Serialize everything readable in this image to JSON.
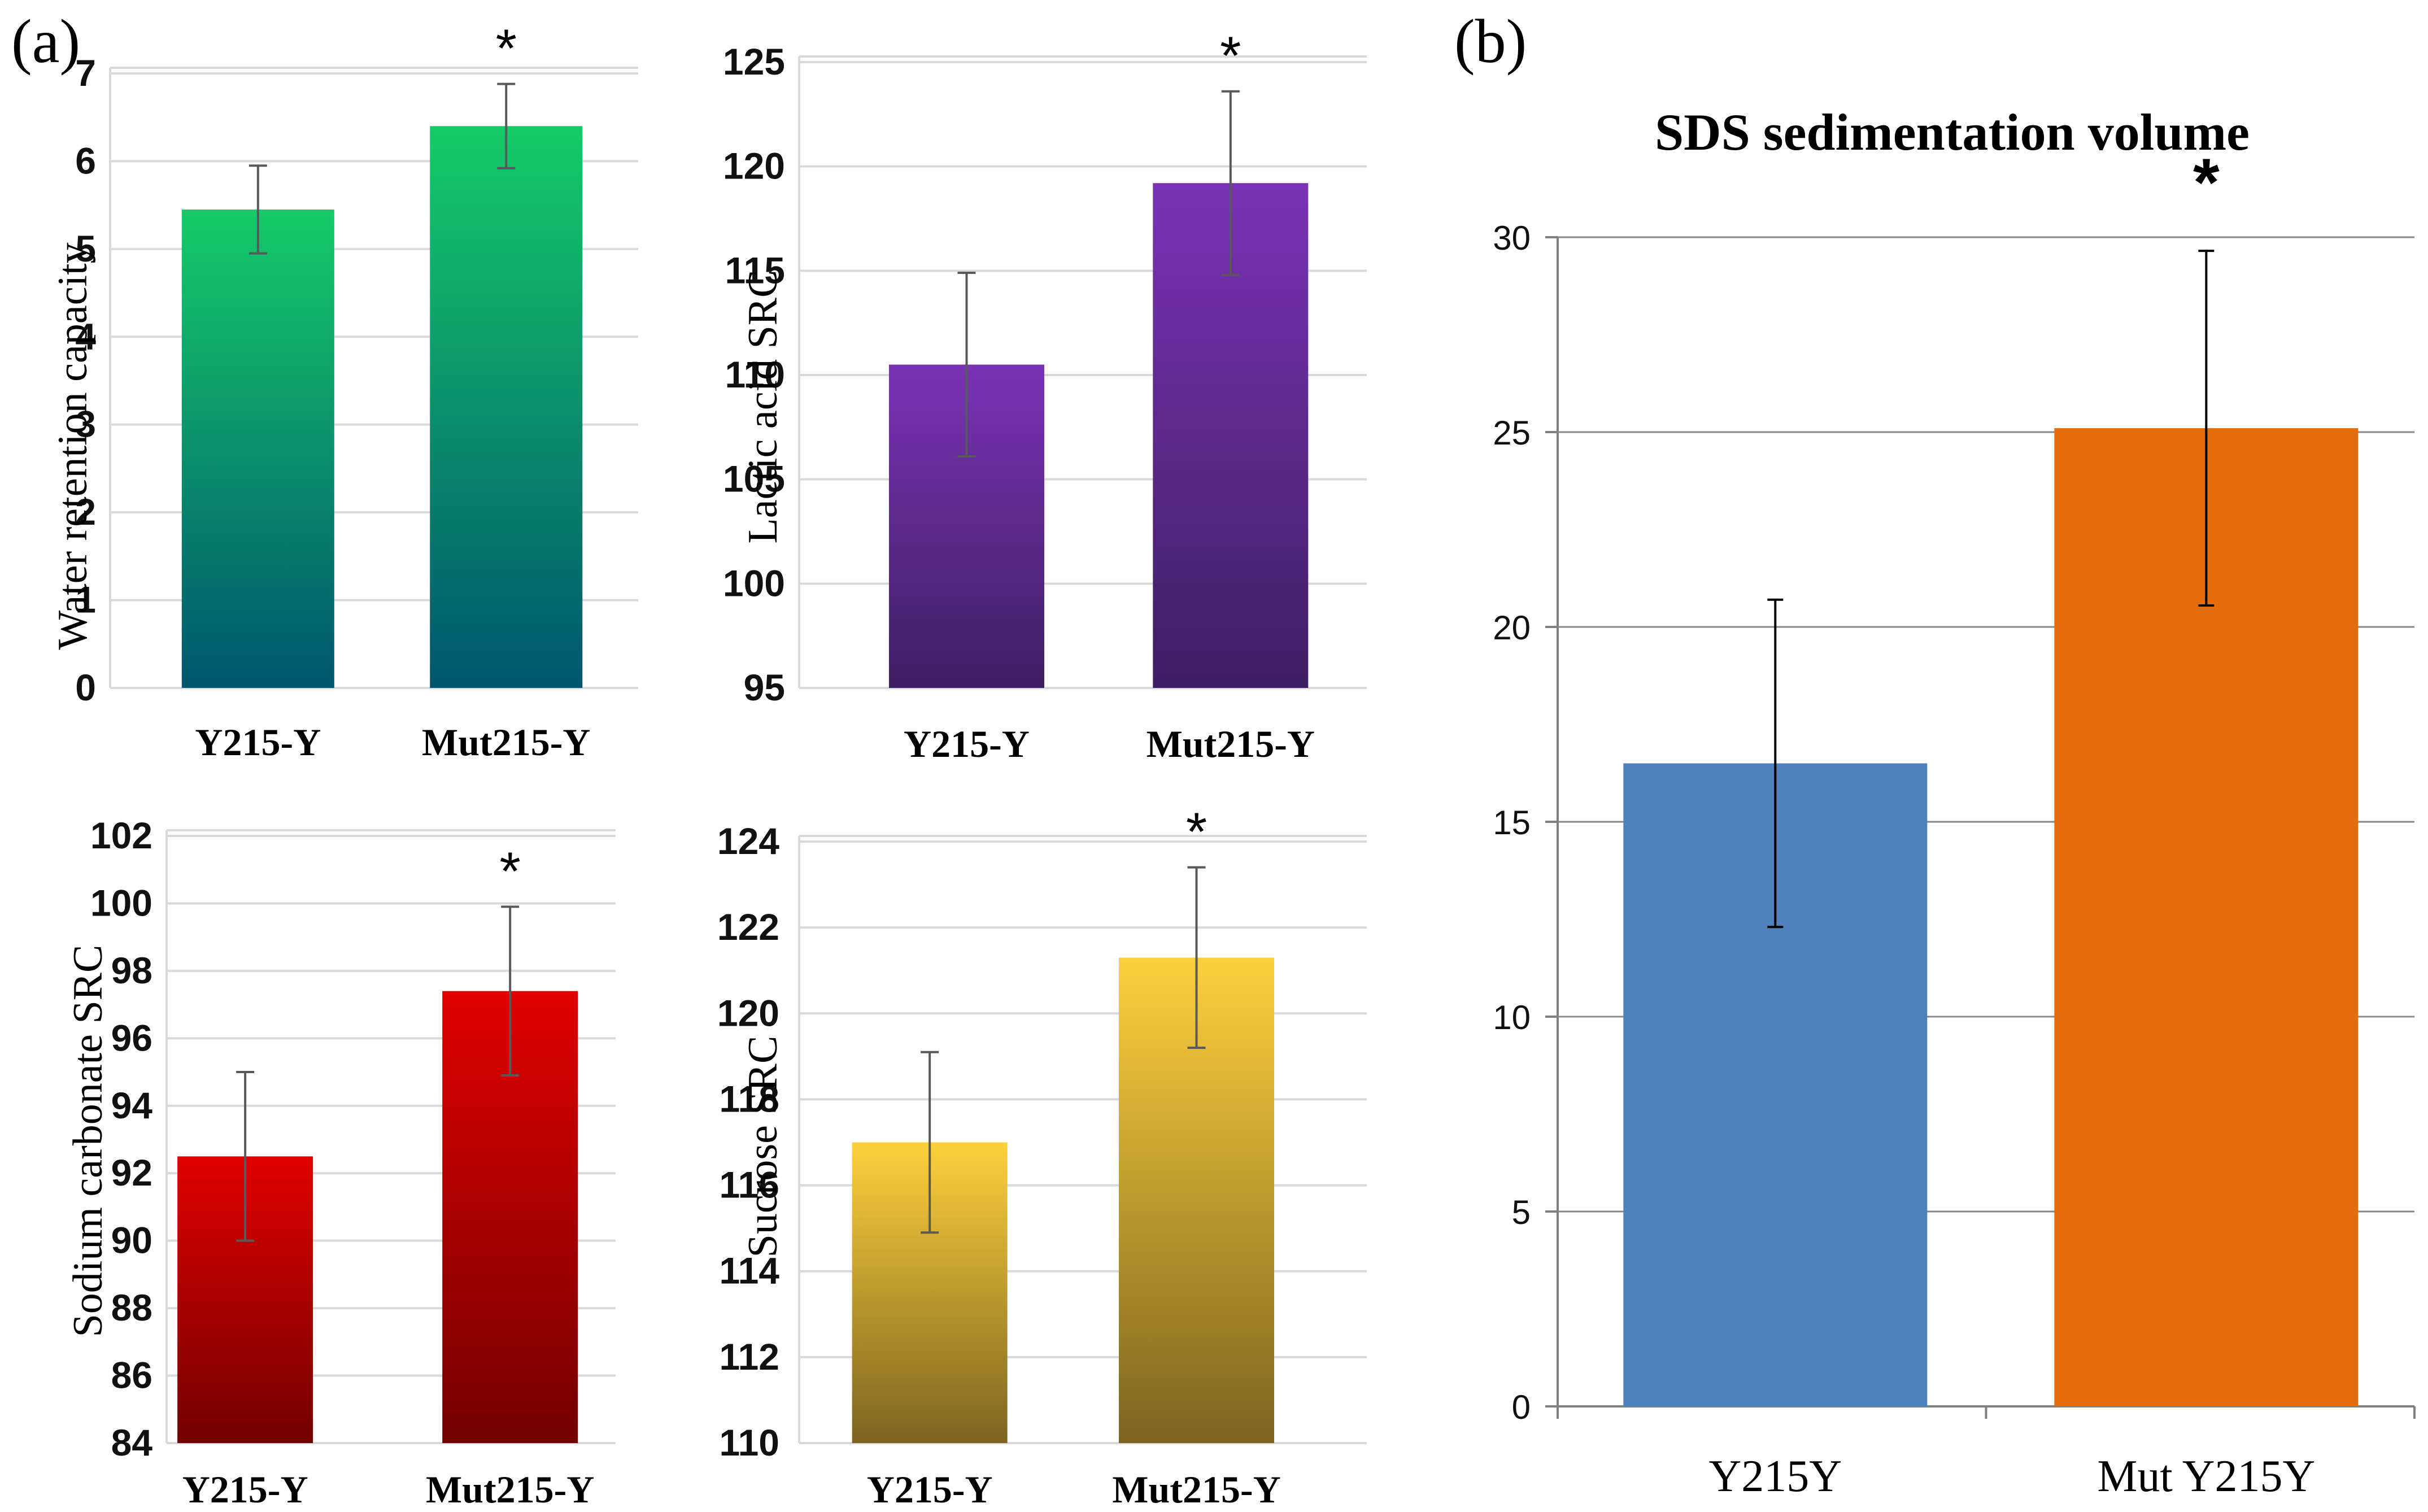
{
  "panel_labels": {
    "a": "(a)",
    "b": "(b)"
  },
  "chart_data": [
    {
      "type": "bar",
      "panel": "a",
      "title": "",
      "ylabel": "Water retention capacity",
      "categories": [
        "Y215-Y",
        "Mut215-Y"
      ],
      "values": [
        5.45,
        6.4
      ],
      "errors": [
        0.5,
        0.48
      ],
      "significance": [
        "",
        "*"
      ],
      "ylim": [
        0,
        7
      ],
      "yticks": [
        0,
        1,
        2,
        3,
        4,
        5,
        6,
        7
      ],
      "colors": {
        "top": "#15CB68",
        "bottom": "#00566E"
      }
    },
    {
      "type": "bar",
      "panel": "a",
      "title": "",
      "ylabel": "Lactic acid SRC",
      "categories": [
        "Y215-Y",
        "Mut215-Y"
      ],
      "values": [
        110.5,
        119.2
      ],
      "errors": [
        4.4,
        4.4
      ],
      "significance": [
        "",
        "*"
      ],
      "ylim": [
        95,
        125
      ],
      "yticks": [
        95,
        100,
        105,
        110,
        115,
        120,
        125
      ],
      "colors": {
        "top": "#7A33B5",
        "bottom": "#3E1E63"
      }
    },
    {
      "type": "bar",
      "panel": "a",
      "title": "",
      "ylabel": "Sodium carbonate  SRC",
      "categories": [
        "Y215-Y",
        "Mut215-Y"
      ],
      "values": [
        92.5,
        97.4
      ],
      "errors": [
        2.5,
        2.5
      ],
      "significance": [
        "",
        "*"
      ],
      "ylim": [
        84,
        102
      ],
      "yticks": [
        84,
        86,
        88,
        90,
        92,
        94,
        96,
        98,
        100,
        102
      ],
      "colors": {
        "top": "#E00000",
        "bottom": "#730000"
      }
    },
    {
      "type": "bar",
      "panel": "a",
      "title": "",
      "ylabel": "Sucrose SRC",
      "categories": [
        "Y215-Y",
        "Mut215-Y"
      ],
      "values": [
        117.0,
        121.3
      ],
      "errors": [
        2.1,
        2.1
      ],
      "significance": [
        "",
        "*"
      ],
      "ylim": [
        110,
        124
      ],
      "yticks": [
        110,
        112,
        114,
        116,
        118,
        120,
        122,
        124
      ],
      "colors": {
        "top": "#FDD03C",
        "bottom": "#7C6420"
      }
    },
    {
      "type": "bar",
      "panel": "b",
      "title": "SDS sedimentation volume",
      "ylabel": "",
      "categories": [
        "Y215Y",
        "Mut Y215Y"
      ],
      "values": [
        16.5,
        25.1
      ],
      "errors": [
        4.2,
        4.55
      ],
      "significance": [
        "",
        "*"
      ],
      "ylim": [
        0,
        30
      ],
      "yticks": [
        0,
        5,
        10,
        15,
        20,
        25,
        30
      ],
      "colors": {
        "bars": [
          "#4F81BD",
          "#E46C0A"
        ]
      }
    }
  ]
}
